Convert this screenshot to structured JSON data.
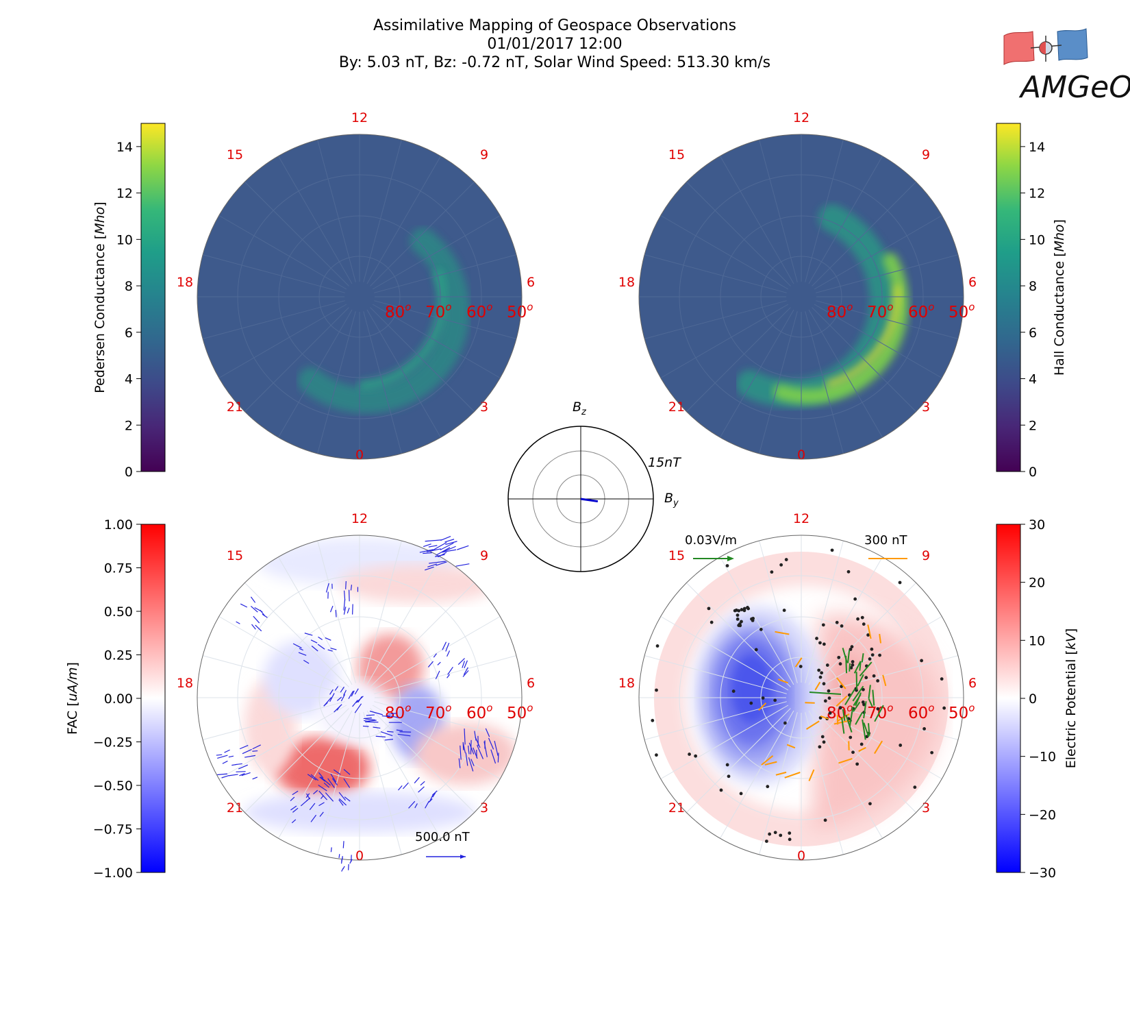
{
  "header": {
    "title": "Assimilative Mapping of Geospace Observations",
    "datetime": "01/01/2017 12:00",
    "params": "By: 5.03 nT, Bz: -0.72 nT, Solar Wind Speed: 513.30 km/s"
  },
  "logo": {
    "text": "AMGeO"
  },
  "colors": {
    "mlt_label": "#e00000",
    "plot_background": "#3e5a8c",
    "by_vector": "#0000cc",
    "ground_vector": "#2222dd",
    "efield_vector": "#228822",
    "mag_vector": "#ff9900"
  },
  "polar_grid": {
    "mlt_labels": [
      "12",
      "9",
      "6",
      "3",
      "0",
      "21",
      "18",
      "15"
    ],
    "lat_labels": [
      "80",
      "70",
      "60",
      "50"
    ],
    "degree_symbol": "o"
  },
  "imf_dial": {
    "bz_label": "B",
    "bz_sub": "z",
    "by_label": "B",
    "by_sub": "y",
    "scale_label": "15nT",
    "max_nT": 15,
    "By": 5.03,
    "Bz": -0.72
  },
  "vector_keys": {
    "fac_key": "500.0 nT",
    "efield_key": "0.03V/m",
    "mag_key": "300 nT"
  },
  "chart_data": [
    {
      "type": "heatmap",
      "name_label": "Pedersen Conductance",
      "unit": "Mho",
      "colormap": "viridis",
      "cbar_ticks": [
        "0",
        "2",
        "4",
        "6",
        "8",
        "10",
        "12",
        "14"
      ],
      "range": [
        0,
        15
      ],
      "background_value": 4.3,
      "auroral_oval_peak": 7.5
    },
    {
      "type": "heatmap",
      "name_label": "Hall Conductance",
      "unit": "Mho",
      "colormap": "viridis",
      "cbar_ticks": [
        "0",
        "2",
        "4",
        "6",
        "8",
        "10",
        "12",
        "14"
      ],
      "range": [
        0,
        15
      ],
      "background_value": 4.3,
      "auroral_oval_peak": 13
    },
    {
      "type": "heatmap",
      "name_label": "FAC",
      "unit": "uA/m",
      "colormap": "bwr",
      "cbar_ticks": [
        "1.00",
        "0.75",
        "0.50",
        "0.25",
        "0.00",
        "−0.25",
        "−0.50",
        "−0.75",
        "−1.00"
      ],
      "range": [
        -1,
        1
      ]
    },
    {
      "type": "heatmap",
      "name_label": "Electric Potential",
      "unit": "kV",
      "colormap": "bwr",
      "cbar_ticks": [
        "30",
        "20",
        "10",
        "0",
        "−10",
        "−20",
        "−30"
      ],
      "range": [
        -30,
        30
      ],
      "min_value": -26,
      "max_value": 8
    }
  ]
}
